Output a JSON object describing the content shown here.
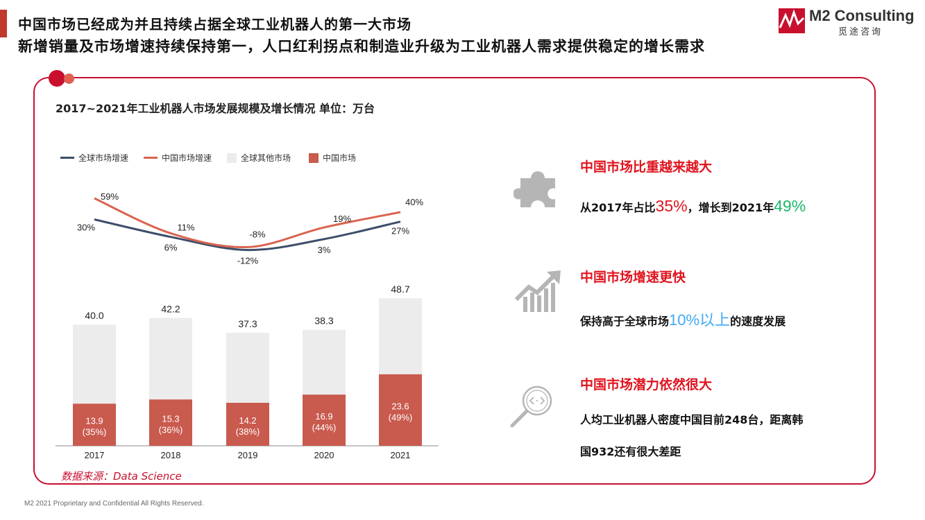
{
  "header": {
    "line1": "中国市场已经成为并且持续占据全球工业机器人的第一大市场",
    "line2": "新增销量及市场增速持续保持第一，人口红利拐点和制造业升级为工业机器人需求提供稳定的增长需求"
  },
  "logo": {
    "name": "M2 Consulting",
    "sub": "觅途咨询"
  },
  "colors": {
    "accent": "#c8102e",
    "china": "#c95a4e",
    "other": "#ececec",
    "global_line": "#3d4e6b",
    "china_line": "#d9644f"
  },
  "chart_title": "2017~2021年工业机器人市场发展规模及增长情况  单位：万台",
  "source": "数据来源：Data Science",
  "chart_data": {
    "type": "bar",
    "categories": [
      "2017",
      "2018",
      "2019",
      "2020",
      "2021"
    ],
    "series": [
      {
        "name": "全球其他市场",
        "stack_total_labels": [
          "40.0",
          "42.2",
          "37.3",
          "38.3",
          "48.7"
        ],
        "values": [
          26.1,
          26.9,
          23.1,
          21.4,
          25.1
        ]
      },
      {
        "name": "中国市场",
        "values": [
          13.9,
          15.3,
          14.2,
          16.9,
          23.6
        ],
        "value_labels": [
          "13.9",
          "15.3",
          "14.2",
          "16.9",
          "23.6"
        ],
        "share_labels": [
          "(35%)",
          "(36%)",
          "(38%)",
          "(44%)",
          "(49%)"
        ]
      }
    ],
    "totals": [
      40.0,
      42.2,
      37.3,
      38.3,
      48.7
    ],
    "lines": [
      {
        "name": "全球市场增速",
        "type": "line",
        "values": [
          30,
          6,
          -12,
          3,
          27
        ],
        "labels": [
          "30%",
          "6%",
          "-12%",
          "3%",
          "27%"
        ]
      },
      {
        "name": "中国市场增速",
        "type": "line",
        "values": [
          59,
          11,
          -8,
          19,
          40
        ],
        "labels": [
          "59%",
          "11%",
          "-8%",
          "19%",
          "40%"
        ]
      }
    ],
    "legend": [
      "全球市场增速",
      "中国市场增速",
      "全球其他市场",
      "中国市场"
    ],
    "legend_position": "top-left",
    "ylim": [
      0,
      50
    ]
  },
  "key_points": [
    {
      "icon": "puzzle-icon",
      "title": "中国市场比重越来越大",
      "body_pre": "从2017年占比",
      "h1": "35%",
      "body_mid": "，增长到2021年",
      "h2": "49%"
    },
    {
      "icon": "growth-chart-icon",
      "title": "中国市场增速更快",
      "body_pre": "保持高于全球市场",
      "h1": "10%以上",
      "body_post": "的速度发展"
    },
    {
      "icon": "magnifier-code-icon",
      "title": "中国市场潜力依然很大",
      "body_line1": "人均工业机器人密度中国目前248台，距离韩",
      "body_line2": "国932还有很大差距"
    }
  ],
  "footer": "M2  2021 Proprietary and Confidential All Rights Reserved."
}
